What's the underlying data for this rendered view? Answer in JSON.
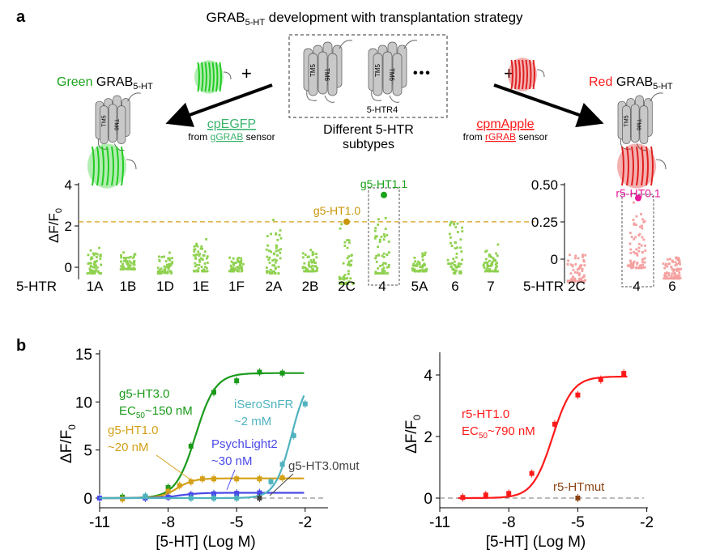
{
  "panel_a": {
    "letter": "a",
    "title_main": "GRAB",
    "title_sub": "5-HT",
    "title_rest": " development with transplantation strategy",
    "green_word": "Green",
    "grab": "GRAB",
    "grab_sub": "5-HT",
    "red_word": "Red",
    "plus": "+",
    "ellipsis": "•••",
    "receptor_label": "5-HTR4",
    "tm5": "TM5",
    "tm6": "TM6",
    "subtypes_line1": "Different 5-HTR",
    "subtypes_line2": "subtypes",
    "green_fp": "cpEGFP",
    "green_from": "from ",
    "green_src": "gGRAB",
    "green_sensor": " sensor",
    "red_fp": "cpmApple",
    "red_from": "from ",
    "red_src": "rGRAB",
    "red_sensor": " sensor",
    "colors": {
      "green": "#1aa31a",
      "green_fp": "#3cb46e",
      "red": "#ff1a1a",
      "gray": "#c8c8c8"
    }
  },
  "panel_b": {
    "letter": "b"
  },
  "chart_data": [
    {
      "type": "scatter",
      "name": "green-screen",
      "ylabel_main": "ΔF/F",
      "ylabel_sub": "0",
      "xlabel": "5-HTR",
      "ylim": [
        -1,
        4
      ],
      "yticks": [
        "0",
        "2",
        "4"
      ],
      "threshold": 2.2,
      "color": "#8fd14f",
      "categories": [
        "1A",
        "1B",
        "1D",
        "1E",
        "1F",
        "2A",
        "2B",
        "2C",
        "4",
        "5A",
        "6",
        "7"
      ],
      "ranges": [
        [
          -0.3,
          1.2
        ],
        [
          -0.1,
          0.9
        ],
        [
          -0.3,
          0.8
        ],
        [
          -0.2,
          1.6
        ],
        [
          -0.2,
          0.7
        ],
        [
          -0.3,
          2.4
        ],
        [
          -0.2,
          1.2
        ],
        [
          -0.8,
          2.3
        ],
        [
          -0.3,
          3.0
        ],
        [
          -0.2,
          0.8
        ],
        [
          -0.3,
          3.1
        ],
        [
          -0.2,
          1.1
        ]
      ],
      "highlights": [
        {
          "label": "g5-HT1.0",
          "category": "2C",
          "value": 2.2,
          "color": "#c8960a"
        },
        {
          "label": "g5-HT1.1",
          "category": "4",
          "value": 3.5,
          "color": "#1aa31a"
        }
      ]
    },
    {
      "type": "scatter",
      "name": "red-screen",
      "xlabel": "5-HTR",
      "ylim": [
        -0.18,
        0.5
      ],
      "yticks": [
        "0",
        "0.25",
        "0.50"
      ],
      "color": "#f5a0a0",
      "categories": [
        "2C",
        "4",
        "6"
      ],
      "ranges": [
        [
          -0.15,
          0.1
        ],
        [
          -0.06,
          0.4
        ],
        [
          -0.13,
          0.06
        ]
      ],
      "highlights": [
        {
          "label": "r5-HT0.1",
          "category": "4",
          "value": 0.41,
          "color": "#e8189a"
        }
      ]
    },
    {
      "type": "line",
      "name": "green-dose-response",
      "xlabel": "[5-HT] (Log M)",
      "ylabel_main": "ΔF/F",
      "ylabel_sub": "0",
      "xlim": [
        -11,
        -0.9
      ],
      "ylim": [
        -0.8,
        15
      ],
      "xticks": [
        "-11",
        "-8",
        "-5",
        "-2"
      ],
      "yticks": [
        "0",
        "5",
        "10",
        "15"
      ],
      "series": [
        {
          "name": "g5-HT3.0",
          "label2_pre": "EC",
          "label2_sub": "50",
          "label2_post": "~150 nM",
          "color": "#1a9a1a",
          "top": 13,
          "logec": -6.8,
          "hill": 1,
          "points": [
            [
              -10,
              0.1
            ],
            [
              -9,
              0.1
            ],
            [
              -8,
              1.1
            ],
            [
              -7,
              5.4
            ],
            [
              -6,
              11
            ],
            [
              -5,
              12.2
            ],
            [
              -4,
              13.1
            ],
            [
              -3,
              13
            ]
          ]
        },
        {
          "name": "g5-HT1.0",
          "label2_pre": "~20 nM",
          "label2_sub": "",
          "label2_post": "",
          "color": "#d4a017",
          "top": 2.05,
          "logec": -7.6,
          "hill": 1.2,
          "points": [
            [
              -10,
              -0.1
            ],
            [
              -9,
              0
            ],
            [
              -8,
              0.7
            ],
            [
              -7.5,
              1.3
            ],
            [
              -7,
              1.7
            ],
            [
              -6.5,
              2.0
            ],
            [
              -6,
              2.0
            ],
            [
              -5,
              2.0
            ],
            [
              -4,
              2.0
            ],
            [
              -3,
              2.1
            ]
          ]
        },
        {
          "name": "PsychLight2",
          "label2_pre": "~30 nM",
          "label2_sub": "",
          "label2_post": "",
          "color": "#4a4ae8",
          "top": 0.55,
          "logec": -7.5,
          "hill": 1,
          "points": [
            [
              -11,
              0
            ],
            [
              -9,
              0
            ],
            [
              -8,
              0.1
            ],
            [
              -7,
              0.35
            ],
            [
              -6,
              0.45
            ],
            [
              -5,
              0.5
            ],
            [
              -4,
              0.55
            ]
          ]
        },
        {
          "name": "iSeroSnFR",
          "label2_pre": "~2 mM",
          "label2_sub": "",
          "label2_post": "",
          "color": "#4fb3bf",
          "top": 13,
          "logec": -2.6,
          "hill": 1.2,
          "points": [
            [
              -9,
              0.2
            ],
            [
              -7,
              0
            ],
            [
              -6,
              0
            ],
            [
              -5,
              0
            ],
            [
              -3.5,
              1.7
            ],
            [
              -3,
              3.5
            ],
            [
              -2.5,
              6.5
            ],
            [
              -2,
              9.8
            ]
          ]
        },
        {
          "name": "g5-HT3.0mut",
          "label2_pre": "",
          "label2_sub": "",
          "label2_post": "",
          "color": "#444444",
          "top": 0,
          "logec": -5,
          "hill": 1,
          "points": [
            [
              -4,
              0
            ]
          ]
        }
      ]
    },
    {
      "type": "line",
      "name": "red-dose-response",
      "xlabel": "[5-HT] (Log M)",
      "ylabel_main": "ΔF/F",
      "ylabel_sub": "0",
      "xlim": [
        -11,
        -2
      ],
      "ylim": [
        -0.3,
        4.7
      ],
      "xticks": [
        "-11",
        "-8",
        "-5",
        "-2"
      ],
      "yticks": [
        "0",
        "2",
        "4"
      ],
      "series": [
        {
          "name": "r5-HT1.0",
          "label2_pre": "EC",
          "label2_sub": "50",
          "label2_post": "~790 nM",
          "color": "#ff1a1a",
          "top": 3.95,
          "logec": -6.1,
          "hill": 1,
          "points": [
            [
              -10,
              0.02
            ],
            [
              -9,
              0.1
            ],
            [
              -8,
              0.15
            ],
            [
              -7,
              0.8
            ],
            [
              -6,
              2.4
            ],
            [
              -5,
              3.35
            ],
            [
              -4,
              3.85
            ],
            [
              -3,
              4.05
            ]
          ]
        },
        {
          "name": "r5-HTmut",
          "label2_pre": "",
          "label2_sub": "",
          "label2_post": "",
          "color": "#8b4513",
          "top": 0,
          "logec": -5,
          "hill": 1,
          "points": [
            [
              -5,
              0
            ]
          ]
        }
      ]
    }
  ]
}
